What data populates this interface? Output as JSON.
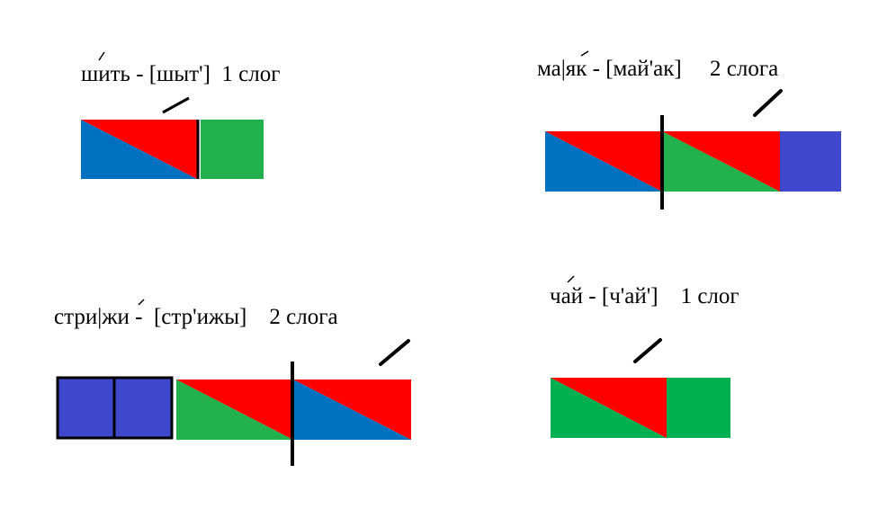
{
  "colors": {
    "vowel": "#ff0000",
    "hard_consonant": "#0070c0",
    "soft_consonant": "#22b14c",
    "j_sound": "#3f48cc"
  },
  "words": [
    {
      "label": "шить - [шыт']  1 слог"
    },
    {
      "label": "ма|як - [май'ак]     2 слога"
    },
    {
      "label": "стри|жи -  [стр'ижы]    2 слога"
    },
    {
      "label": "чай - [ч'ай']    1 слог"
    }
  ]
}
